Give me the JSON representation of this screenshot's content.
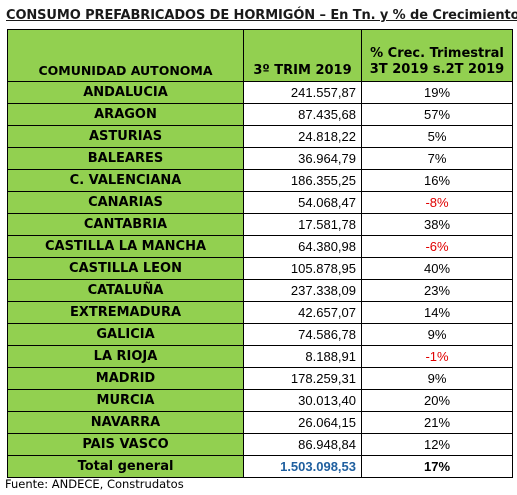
{
  "title": "CONSUMO PREFABRICADOS DE HORMIGÓN – En Tn. y % de Crecimiento",
  "header": {
    "region": "COMUNIDAD AUTONOMA",
    "trim": "3º TRIM 2019",
    "pct_line1": "% Crec. Trimestral",
    "pct_line2": "3T 2019 s.2T 2019"
  },
  "rows": [
    {
      "region": "ANDALUCIA",
      "value": "241.557,87",
      "pct": "19%"
    },
    {
      "region": "ARAGON",
      "value": "87.435,68",
      "pct": "57%"
    },
    {
      "region": "ASTURIAS",
      "value": "24.818,22",
      "pct": "5%"
    },
    {
      "region": "BALEARES",
      "value": "36.964,79",
      "pct": "7%"
    },
    {
      "region": "C. VALENCIANA",
      "value": "186.355,25",
      "pct": "16%"
    },
    {
      "region": "CANARIAS",
      "value": "54.068,47",
      "pct": "-8%"
    },
    {
      "region": "CANTABRIA",
      "value": "17.581,78",
      "pct": "38%"
    },
    {
      "region": "CASTILLA LA MANCHA",
      "value": "64.380,98",
      "pct": "-6%"
    },
    {
      "region": "CASTILLA LEON",
      "value": "105.878,95",
      "pct": "40%"
    },
    {
      "region": "CATALUÑA",
      "value": "237.338,09",
      "pct": "23%"
    },
    {
      "region": "EXTREMADURA",
      "value": "42.657,07",
      "pct": "14%"
    },
    {
      "region": "GALICIA",
      "value": "74.586,78",
      "pct": "9%"
    },
    {
      "region": "LA RIOJA",
      "value": "8.188,91",
      "pct": "-1%"
    },
    {
      "region": "MADRID",
      "value": "178.259,31",
      "pct": "9%"
    },
    {
      "region": "MURCIA",
      "value": "30.013,40",
      "pct": "20%"
    },
    {
      "region": "NAVARRA",
      "value": "26.064,15",
      "pct": "21%"
    },
    {
      "region": "PAIS VASCO",
      "value": "86.948,84",
      "pct": "12%"
    }
  ],
  "total": {
    "region": "Total general",
    "value": "1.503.098,53",
    "pct": "17%"
  },
  "source": "Fuente: ANDECE, Construdatos",
  "colors": {
    "header_green": "#92d050",
    "negative_red": "#e00000",
    "total_blue": "#1f5f9f"
  }
}
